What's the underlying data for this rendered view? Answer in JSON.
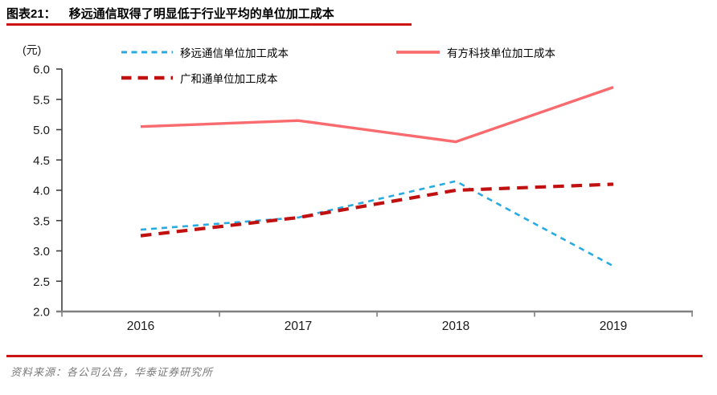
{
  "header": {
    "label": "图表21：",
    "title": "移远通信取得了明显低于行业平均的单位加工成本"
  },
  "footer": {
    "source": "资料来源：各公司公告，华泰证券研究所"
  },
  "colors": {
    "accent_red": "#cc1414",
    "axis_vertical": "#404040",
    "axis_horizontal": "#808080",
    "tick_text": "#1a1a1a",
    "quectel_blue": "#29abe2",
    "neoway_salmon": "#f96b6e",
    "fibocom_darkred": "#c0100f"
  },
  "chart_data": {
    "type": "line",
    "unit_label": "(元)",
    "categories": [
      "2016",
      "2017",
      "2018",
      "2019"
    ],
    "series": [
      {
        "name": "移远通信单位加工成本",
        "values": [
          3.35,
          3.55,
          4.15,
          2.75
        ],
        "color": "#29abe2",
        "style": "dashed-small"
      },
      {
        "name": "有方科技单位加工成本",
        "values": [
          5.05,
          5.15,
          4.8,
          5.7
        ],
        "color": "#f96b6e",
        "style": "solid"
      },
      {
        "name": "广和通单位加工成本",
        "values": [
          3.25,
          3.55,
          4.0,
          4.1
        ],
        "color": "#c0100f",
        "style": "dashed-large"
      }
    ],
    "ylim": [
      2.0,
      6.0
    ],
    "ytick_step": 0.5,
    "yticks": [
      "6.0",
      "5.5",
      "5.0",
      "4.5",
      "4.0",
      "3.5",
      "3.0",
      "2.5",
      "2.0"
    ],
    "grid": false,
    "legend_position": "top"
  }
}
